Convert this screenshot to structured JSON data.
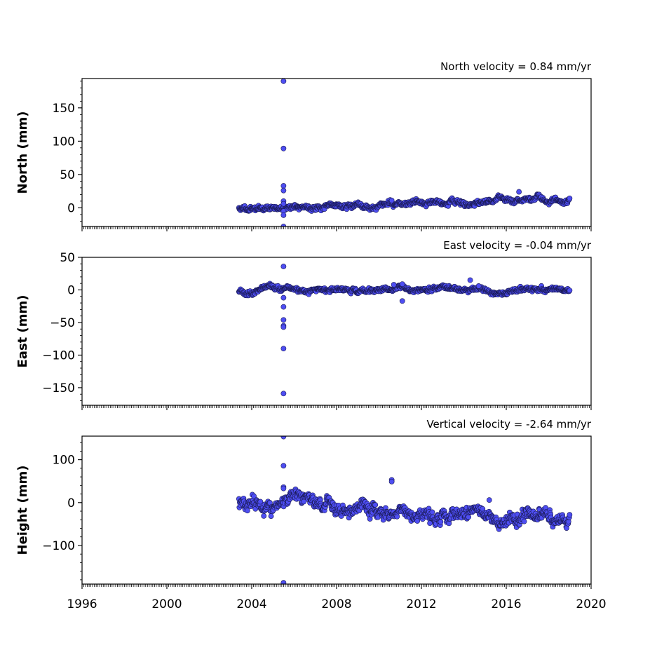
{
  "chart_data": [
    {
      "type": "scatter",
      "title": "North velocity = 0.84 mm/yr",
      "xlabel": "",
      "ylabel": "North (mm)",
      "xlim": [
        1996,
        2020
      ],
      "ylim": [
        -28,
        194
      ],
      "yticks": [
        0,
        50,
        100,
        150
      ],
      "ytick_labels": [
        "0",
        "50",
        "100",
        "150"
      ],
      "xticks": [
        1996,
        2000,
        2004,
        2008,
        2012,
        2016,
        2020
      ],
      "xtick_labels": [],
      "trend": {
        "start_year": 2003.4,
        "end_year": 2019.0,
        "start_value": -1.5,
        "slope": 0.84,
        "noise": 2.2,
        "seed": 11
      },
      "outliers": [
        [
          2005.5,
          190
        ],
        [
          2005.5,
          89
        ],
        [
          2005.5,
          33
        ],
        [
          2005.5,
          26
        ],
        [
          2005.5,
          10
        ],
        [
          2005.5,
          6
        ],
        [
          2005.5,
          -5
        ],
        [
          2005.5,
          -11
        ],
        [
          2005.5,
          -28
        ],
        [
          2016.6,
          24
        ],
        [
          2010.6,
          11
        ]
      ]
    },
    {
      "type": "scatter",
      "title": "East velocity = -0.04 mm/yr",
      "xlabel": "",
      "ylabel": "East (mm)",
      "xlim": [
        1996,
        2020
      ],
      "ylim": [
        -177,
        50
      ],
      "yticks": [
        -150,
        -100,
        -50,
        0,
        50
      ],
      "ytick_labels": [
        "−150",
        "−100",
        "−50",
        "0",
        "50"
      ],
      "xticks": [
        1996,
        2000,
        2004,
        2008,
        2012,
        2016,
        2020
      ],
      "xtick_labels": [],
      "trend": {
        "start_year": 2003.4,
        "end_year": 2019.0,
        "start_value": -1.0,
        "slope": -0.04,
        "noise": 2.0,
        "seed": 23
      },
      "outliers": [
        [
          2005.5,
          36
        ],
        [
          2005.5,
          -12
        ],
        [
          2005.5,
          -26
        ],
        [
          2005.5,
          -46
        ],
        [
          2005.5,
          -55
        ],
        [
          2005.5,
          -57
        ],
        [
          2005.5,
          -90
        ],
        [
          2005.5,
          -159
        ],
        [
          2014.3,
          15
        ],
        [
          2011.1,
          -17
        ],
        [
          2010.7,
          8
        ],
        [
          2011.1,
          9
        ],
        [
          2014.7,
          6
        ]
      ]
    },
    {
      "type": "scatter",
      "title": "Vertical velocity = -2.64 mm/yr",
      "xlabel": "",
      "ylabel": "Height (mm)",
      "xlim": [
        1996,
        2020
      ],
      "ylim": [
        -190,
        155
      ],
      "yticks": [
        -100,
        0,
        100
      ],
      "ytick_labels": [
        "−100",
        "0",
        "100"
      ],
      "xticks": [
        1996,
        2000,
        2004,
        2008,
        2012,
        2016,
        2020
      ],
      "xtick_labels": [
        "1996",
        "2000",
        "2004",
        "2008",
        "2012",
        "2016",
        "2020"
      ],
      "trend": {
        "start_year": 2003.4,
        "end_year": 2019.0,
        "start_value": 2.0,
        "slope": -2.64,
        "noise": 9.0,
        "seed": 37
      },
      "outliers": [
        [
          2005.5,
          154
        ],
        [
          2005.5,
          86
        ],
        [
          2005.5,
          36
        ],
        [
          2005.5,
          33
        ],
        [
          2005.5,
          -187
        ],
        [
          2010.6,
          53
        ],
        [
          2010.6,
          49
        ],
        [
          2015.2,
          6
        ],
        [
          2012.4,
          -48
        ]
      ]
    }
  ],
  "colors": {
    "marker_fill": "#4e4ef2",
    "marker_edge": "#1a1a55",
    "axis": "#000000",
    "background": "#ffffff"
  }
}
